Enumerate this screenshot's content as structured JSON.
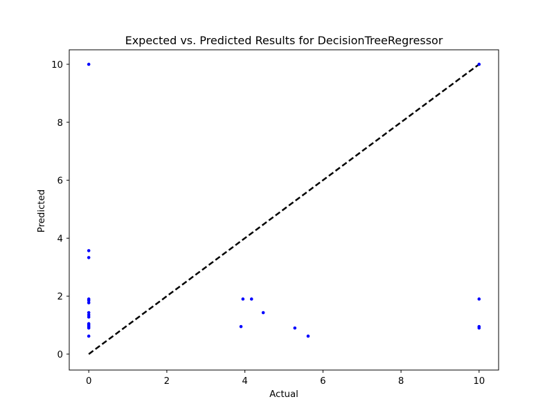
{
  "chart_data": {
    "type": "scatter",
    "title": "Expected vs. Predicted Results for DecisionTreeRegressor",
    "xlabel": "Actual",
    "ylabel": "Predicted",
    "xlim": [
      -0.5,
      10.5
    ],
    "ylim": [
      -0.55,
      10.5
    ],
    "xticks": [
      0,
      2,
      4,
      6,
      8,
      10
    ],
    "yticks": [
      0,
      2,
      4,
      6,
      8,
      10
    ],
    "grid": false,
    "legend": false,
    "colors": {
      "points": "#0000ff",
      "reference_line": "#000000"
    },
    "reference_line": {
      "style": "dashed",
      "from": [
        0,
        0
      ],
      "to": [
        10,
        10
      ]
    },
    "points": [
      {
        "x": 0,
        "y": 10.0
      },
      {
        "x": 0,
        "y": 3.57
      },
      {
        "x": 0,
        "y": 3.33
      },
      {
        "x": 0,
        "y": 1.9
      },
      {
        "x": 0,
        "y": 1.85
      },
      {
        "x": 0,
        "y": 1.77
      },
      {
        "x": 0,
        "y": 1.43
      },
      {
        "x": 0,
        "y": 1.35
      },
      {
        "x": 0,
        "y": 1.28
      },
      {
        "x": 0,
        "y": 1.05
      },
      {
        "x": 0,
        "y": 1.0
      },
      {
        "x": 0,
        "y": 0.95
      },
      {
        "x": 0,
        "y": 0.9
      },
      {
        "x": 0,
        "y": 0.62
      },
      {
        "x": 3.9,
        "y": 0.95
      },
      {
        "x": 3.95,
        "y": 1.9
      },
      {
        "x": 4.17,
        "y": 1.9
      },
      {
        "x": 4.47,
        "y": 1.43
      },
      {
        "x": 5.28,
        "y": 0.9
      },
      {
        "x": 5.62,
        "y": 0.62
      },
      {
        "x": 10.0,
        "y": 10.0
      },
      {
        "x": 10.0,
        "y": 1.9
      },
      {
        "x": 10.0,
        "y": 0.95
      },
      {
        "x": 10.0,
        "y": 0.9
      }
    ]
  }
}
